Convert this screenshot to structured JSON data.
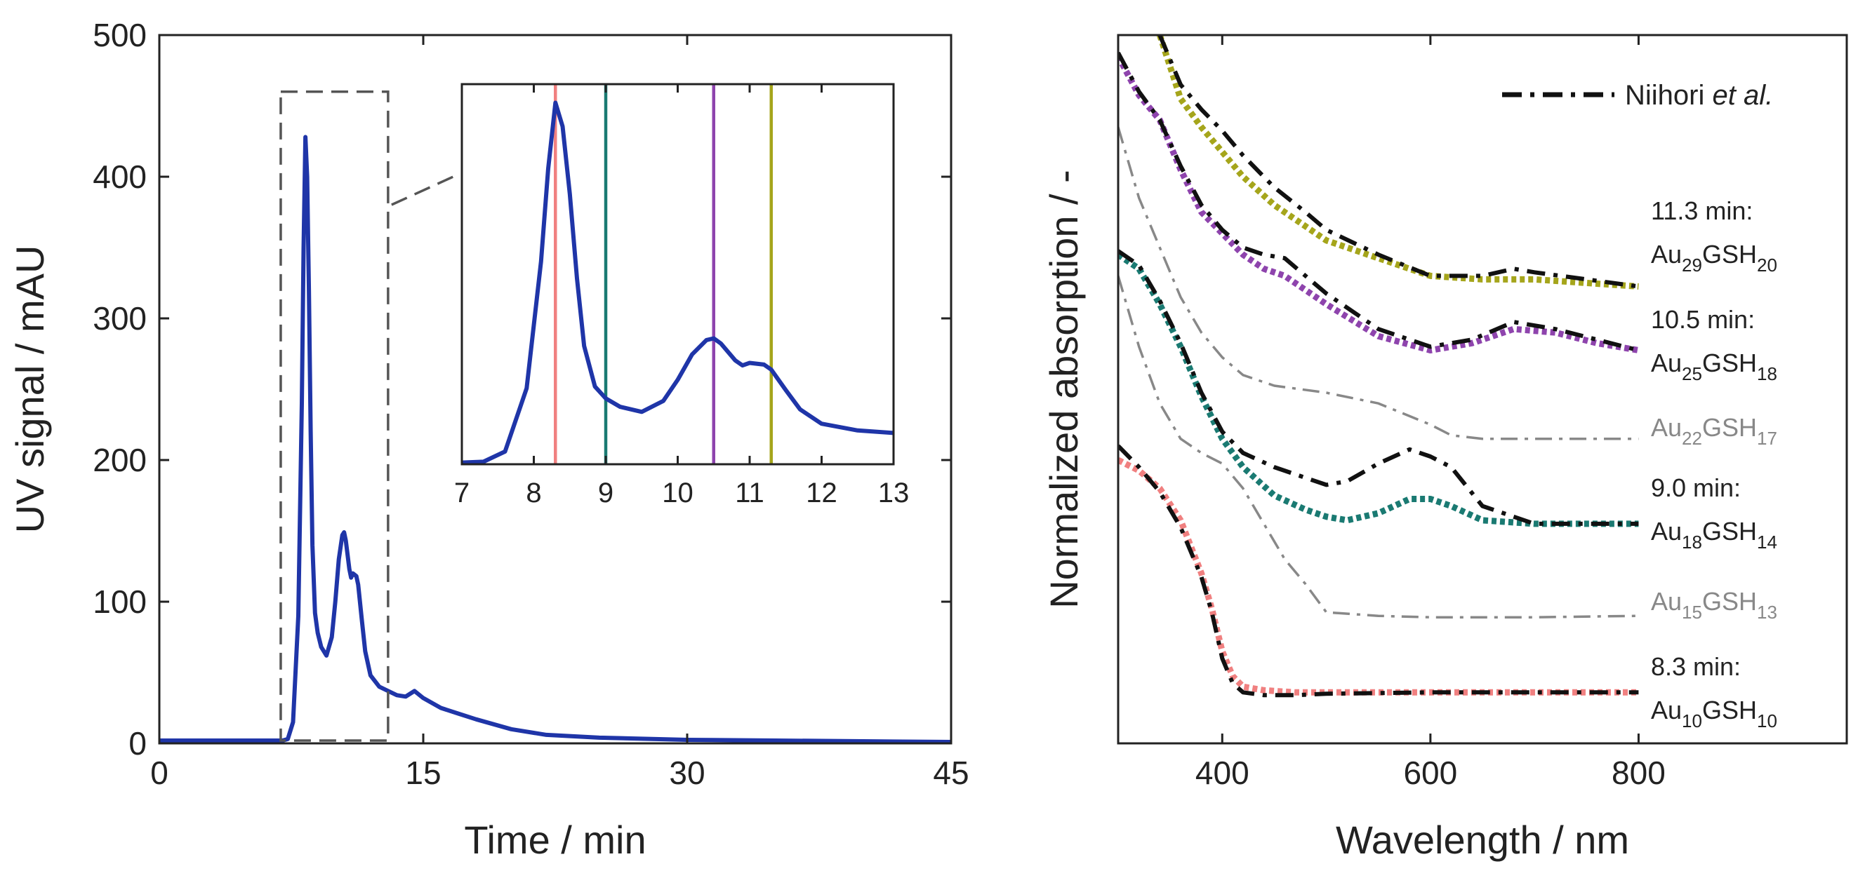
{
  "chart_data": [
    {
      "type": "line",
      "panel": "left",
      "title": "",
      "xlabel": "Time  / min",
      "ylabel": "UV signal  / mAU",
      "xlim": [
        0,
        45
      ],
      "ylim": [
        0,
        500
      ],
      "xticks": [
        0,
        15,
        30,
        45
      ],
      "yticks": [
        0,
        100,
        200,
        300,
        400,
        500
      ],
      "xtick_labels": [
        "0",
        "15",
        "30",
        "45"
      ],
      "ytick_labels": [
        "0",
        "100",
        "200",
        "300",
        "400",
        "500"
      ],
      "grid": false,
      "zoom_box": {
        "x_range": [
          6.9,
          13.0
        ],
        "y_range": [
          2,
          460
        ]
      },
      "series": [
        {
          "name": "UV signal",
          "color": "#1f35a8",
          "x": [
            0,
            6.5,
            7.0,
            7.3,
            7.6,
            7.9,
            8.1,
            8.2,
            8.3,
            8.4,
            8.5,
            8.6,
            8.7,
            8.85,
            9.0,
            9.2,
            9.5,
            9.8,
            10.0,
            10.2,
            10.4,
            10.5,
            10.6,
            10.8,
            10.9,
            11.0,
            11.2,
            11.3,
            11.5,
            11.7,
            12.0,
            12.5,
            13.0,
            13.5,
            14.0,
            14.5,
            15.0,
            16.0,
            17.0,
            18.0,
            20.0,
            22.0,
            25.0,
            30.0,
            35.0,
            40.0,
            45.0
          ],
          "y": [
            2,
            2,
            2,
            3,
            15,
            90,
            240,
            350,
            428,
            400,
            320,
            220,
            140,
            92,
            78,
            68,
            62,
            75,
            100,
            130,
            147,
            149,
            143,
            123,
            117,
            120,
            118,
            112,
            88,
            65,
            48,
            40,
            37,
            34,
            33,
            37,
            32,
            25,
            21,
            17,
            10,
            6,
            4,
            2.5,
            2,
            1.5,
            1
          ]
        }
      ]
    },
    {
      "type": "line",
      "panel": "inset",
      "xlim": [
        7,
        13
      ],
      "ylim": [
        0,
        450
      ],
      "xticks": [
        7,
        8,
        9,
        10,
        11,
        12,
        13
      ],
      "xtick_labels": [
        "7",
        "8",
        "9",
        "10",
        "11",
        "12",
        "13"
      ],
      "vlines": [
        {
          "x": 8.3,
          "color": "#f08080"
        },
        {
          "x": 9.0,
          "color": "#1a7a72"
        },
        {
          "x": 10.5,
          "color": "#8e44ad"
        },
        {
          "x": 11.3,
          "color": "#a5a51b"
        }
      ],
      "series": [
        {
          "name": "UV signal (zoom)",
          "color": "#1f35a8",
          "x": [
            7.0,
            7.3,
            7.6,
            7.9,
            8.1,
            8.2,
            8.3,
            8.4,
            8.5,
            8.6,
            8.7,
            8.85,
            9.0,
            9.2,
            9.5,
            9.8,
            10.0,
            10.2,
            10.4,
            10.5,
            10.6,
            10.8,
            10.9,
            11.0,
            11.2,
            11.3,
            11.5,
            11.7,
            12.0,
            12.5,
            13.0
          ],
          "y": [
            2,
            3,
            15,
            90,
            240,
            350,
            428,
            400,
            320,
            220,
            140,
            92,
            78,
            68,
            62,
            75,
            100,
            130,
            147,
            149,
            143,
            123,
            117,
            120,
            118,
            112,
            88,
            65,
            48,
            40,
            37
          ]
        }
      ]
    },
    {
      "type": "line",
      "panel": "right",
      "xlabel": "Wavelength  / nm",
      "ylabel": "Normalized absorption  / -",
      "xlim": [
        300,
        1000
      ],
      "ylim": [
        0,
        10
      ],
      "xticks": [
        400,
        600,
        800
      ],
      "xtick_labels": [
        "400",
        "600",
        "800"
      ],
      "legend": {
        "label_main": "Niihori ",
        "label_italic": "et al.",
        "position": "top-right"
      },
      "annotations": [
        {
          "time": "11.3 min:",
          "formula": {
            "base1": "Au",
            "sub1": "29",
            "base2": "GSH",
            "sub2": "20"
          },
          "color": "#222222"
        },
        {
          "time": "10.5 min:",
          "formula": {
            "base1": "Au",
            "sub1": "25",
            "base2": "GSH",
            "sub2": "18"
          },
          "color": "#222222"
        },
        {
          "time": "",
          "formula": {
            "base1": "Au",
            "sub1": "22",
            "base2": "GSH",
            "sub2": "17"
          },
          "color": "#888888"
        },
        {
          "time": "9.0 min:",
          "formula": {
            "base1": "Au",
            "sub1": "18",
            "base2": "GSH",
            "sub2": "14"
          },
          "color": "#222222"
        },
        {
          "time": "",
          "formula": {
            "base1": "Au",
            "sub1": "15",
            "base2": "GSH",
            "sub2": "13"
          },
          "color": "#888888"
        },
        {
          "time": "8.3 min:",
          "formula": {
            "base1": "Au",
            "sub1": "10",
            "base2": "GSH",
            "sub2": "10"
          },
          "color": "#222222"
        }
      ],
      "series": [
        {
          "name": "Au29GSH20 measured",
          "style": "dotted",
          "color": "#a5a51b",
          "x": [
            340,
            360,
            380,
            400,
            420,
            450,
            480,
            500,
            550,
            600,
            650,
            700,
            750,
            800
          ],
          "y": [
            10.0,
            9.1,
            8.7,
            8.35,
            8.0,
            7.6,
            7.3,
            7.1,
            6.85,
            6.6,
            6.55,
            6.55,
            6.5,
            6.45
          ]
        },
        {
          "name": "Au29GSH20 Niihori",
          "style": "dashdot",
          "color": "#111111",
          "x": [
            340,
            360,
            380,
            400,
            420,
            450,
            480,
            500,
            550,
            600,
            650,
            680,
            700,
            750,
            800
          ],
          "y": [
            10.0,
            9.3,
            8.95,
            8.65,
            8.3,
            7.85,
            7.5,
            7.25,
            6.9,
            6.6,
            6.6,
            6.7,
            6.65,
            6.55,
            6.45
          ]
        },
        {
          "name": "Au25GSH18 measured",
          "style": "dotted",
          "color": "#8e44ad",
          "x": [
            300,
            320,
            340,
            360,
            380,
            400,
            420,
            440,
            460,
            480,
            500,
            550,
            600,
            640,
            680,
            720,
            760,
            800
          ],
          "y": [
            9.7,
            9.15,
            8.8,
            8.1,
            7.5,
            7.2,
            6.9,
            6.7,
            6.6,
            6.4,
            6.2,
            5.75,
            5.55,
            5.65,
            5.85,
            5.8,
            5.65,
            5.55
          ]
        },
        {
          "name": "Au25GSH18 Niihori",
          "style": "dashdot",
          "color": "#111111",
          "x": [
            300,
            320,
            340,
            360,
            380,
            400,
            420,
            440,
            460,
            480,
            500,
            550,
            600,
            640,
            680,
            720,
            760,
            800
          ],
          "y": [
            9.75,
            9.2,
            8.8,
            8.15,
            7.6,
            7.25,
            7.0,
            6.9,
            6.85,
            6.6,
            6.35,
            5.85,
            5.6,
            5.7,
            5.95,
            5.85,
            5.7,
            5.55
          ]
        },
        {
          "name": "Au22GSH17 reference",
          "style": "dashdot",
          "color": "#888888",
          "x": [
            300,
            320,
            340,
            360,
            380,
            400,
            420,
            450,
            500,
            550,
            600,
            620,
            650,
            700,
            800
          ],
          "y": [
            8.7,
            7.7,
            7.0,
            6.3,
            5.8,
            5.45,
            5.2,
            5.05,
            4.95,
            4.8,
            4.5,
            4.35,
            4.3,
            4.3,
            4.3
          ]
        },
        {
          "name": "Au18GSH14 measured",
          "style": "dotted",
          "color": "#1a7a72",
          "x": [
            300,
            320,
            340,
            360,
            380,
            400,
            420,
            450,
            480,
            500,
            520,
            550,
            580,
            600,
            620,
            650,
            700,
            800
          ],
          "y": [
            6.9,
            6.7,
            6.2,
            5.6,
            4.9,
            4.3,
            3.9,
            3.5,
            3.3,
            3.2,
            3.15,
            3.25,
            3.45,
            3.45,
            3.35,
            3.15,
            3.1,
            3.1
          ]
        },
        {
          "name": "Au18GSH14 Niihori",
          "style": "dashdot",
          "color": "#111111",
          "x": [
            300,
            320,
            340,
            360,
            380,
            400,
            420,
            450,
            480,
            500,
            520,
            550,
            580,
            600,
            620,
            650,
            700,
            800
          ],
          "y": [
            6.95,
            6.75,
            6.25,
            5.65,
            4.95,
            4.4,
            4.1,
            3.9,
            3.75,
            3.65,
            3.7,
            3.95,
            4.15,
            4.05,
            3.9,
            3.35,
            3.1,
            3.1
          ]
        },
        {
          "name": "Au15GSH13 reference",
          "style": "dashdot",
          "color": "#888888",
          "x": [
            300,
            320,
            340,
            360,
            380,
            400,
            420,
            440,
            460,
            480,
            500,
            550,
            600,
            650,
            700,
            800
          ],
          "y": [
            6.6,
            5.6,
            4.8,
            4.3,
            4.1,
            3.95,
            3.6,
            3.1,
            2.6,
            2.25,
            1.85,
            1.8,
            1.78,
            1.78,
            1.78,
            1.8
          ]
        },
        {
          "name": "Au10GSH10 measured",
          "style": "dotted",
          "color": "#f08080",
          "x": [
            300,
            320,
            340,
            360,
            380,
            390,
            400,
            410,
            420,
            440,
            470,
            500,
            600,
            700,
            800
          ],
          "y": [
            4.0,
            3.85,
            3.6,
            3.15,
            2.4,
            1.9,
            1.3,
            0.95,
            0.8,
            0.75,
            0.72,
            0.72,
            0.72,
            0.72,
            0.72
          ]
        },
        {
          "name": "Au10GSH10 Niihori",
          "style": "dashdot",
          "color": "#111111",
          "x": [
            300,
            320,
            340,
            360,
            380,
            390,
            400,
            410,
            420,
            440,
            470,
            500,
            600,
            700,
            800
          ],
          "y": [
            4.2,
            3.9,
            3.55,
            3.05,
            2.35,
            1.85,
            1.2,
            0.85,
            0.72,
            0.68,
            0.68,
            0.7,
            0.72,
            0.72,
            0.72
          ]
        }
      ]
    }
  ]
}
